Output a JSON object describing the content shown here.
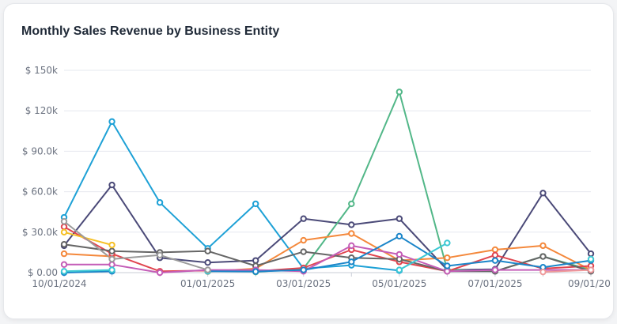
{
  "card": {
    "title": "Monthly Sales Revenue by Business Entity"
  },
  "chart_data": {
    "type": "line",
    "title": "Monthly Sales Revenue by Business Entity",
    "xlabel": "",
    "ylabel": "",
    "ylim": [
      0,
      150000
    ],
    "y_ticks": [
      {
        "value": 0,
        "label": "$ 0.00"
      },
      {
        "value": 30000,
        "label": "$ 30.0k"
      },
      {
        "value": 60000,
        "label": "$ 60.0k"
      },
      {
        "value": 90000,
        "label": "$ 90.0k"
      },
      {
        "value": 120000,
        "label": "$ 120k"
      },
      {
        "value": 150000,
        "label": "$ 150k"
      }
    ],
    "x_ticks": [
      "10/01/2024",
      "01/01/2025",
      "03/01/2025",
      "05/01/2025",
      "07/01/2025",
      "09/01/20"
    ],
    "x_tick_indices": [
      0,
      3,
      5,
      7,
      9,
      11
    ],
    "x": [
      "2024-10",
      "2024-11",
      "2024-12",
      "2025-01",
      "2025-02",
      "2025-03",
      "2025-04",
      "2025-05",
      "2025-06",
      "2025-07",
      "2025-08",
      "2025-09"
    ],
    "grid": true,
    "legend": "none",
    "series": [
      {
        "color": "#1ea1d6",
        "values": [
          41000,
          112000,
          52000,
          18000,
          51000,
          3000,
          5500,
          1500,
          null,
          null,
          null,
          null
        ]
      },
      {
        "color": "#4b4a78",
        "values": [
          20000,
          65000,
          11000,
          7500,
          9000,
          40000,
          35500,
          40000,
          2000,
          2500,
          59000,
          14000
        ]
      },
      {
        "color": "#52b788",
        "values": [
          null,
          null,
          null,
          null,
          500,
          3000,
          51000,
          134000,
          2000,
          1000,
          12000,
          2000
        ]
      },
      {
        "color": "#f4883b",
        "values": [
          14000,
          12000,
          null,
          800,
          3000,
          24000,
          29000,
          9000,
          11000,
          17000,
          20000,
          2000
        ]
      },
      {
        "color": "#e0454f",
        "values": [
          34000,
          14000,
          1000,
          1500,
          1000,
          3500,
          17000,
          8000,
          1000,
          13000,
          3000,
          5000
        ]
      },
      {
        "color": "#666666",
        "values": [
          21000,
          16000,
          15000,
          16000,
          5000,
          15500,
          11000,
          10000,
          1000,
          1000,
          12000,
          1000
        ]
      },
      {
        "color": "#c45db7",
        "values": [
          6000,
          6000,
          0,
          2000,
          2000,
          1000,
          20000,
          13500,
          1000,
          2000,
          2000,
          2000
        ]
      },
      {
        "color": "#1a85c9",
        "values": [
          0,
          1000,
          null,
          1000,
          800,
          2000,
          8000,
          27000,
          5000,
          9000,
          4000,
          9000
        ]
      },
      {
        "color": "#3cc8d3",
        "values": [
          1000,
          2000,
          null,
          1000,
          null,
          null,
          null,
          2000,
          22000,
          null,
          null,
          10000
        ]
      },
      {
        "color": "#f6c026",
        "values": [
          30000,
          20500,
          null,
          null,
          null,
          null,
          null,
          null,
          null,
          null,
          null,
          null
        ]
      },
      {
        "color": "#9b9b9b",
        "values": [
          38000,
          10000,
          13000,
          2000,
          null,
          null,
          null,
          null,
          null,
          null,
          null,
          null
        ]
      },
      {
        "color": "#ef9a9a",
        "values": [
          null,
          null,
          null,
          null,
          null,
          null,
          null,
          null,
          null,
          null,
          500,
          2000
        ]
      }
    ]
  }
}
